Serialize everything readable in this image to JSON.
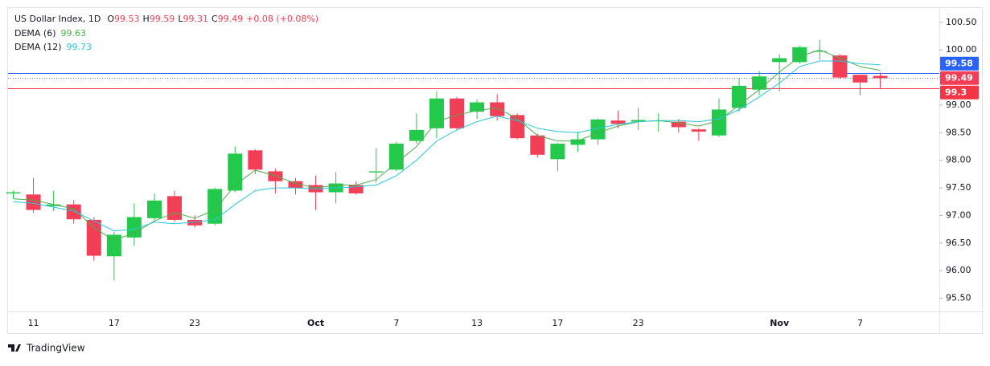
{
  "chart_data": {
    "type": "candlestick",
    "title": "US Dollar Index, 1D",
    "ohlc_letters": [
      "O",
      "H",
      "L",
      "C"
    ],
    "change_label": "+0.08 (+0.08%)",
    "footer": "TradingView",
    "up_color": "#22c94a",
    "down_color": "#f23e57",
    "categories": [
      null,
      "11",
      null,
      null,
      null,
      "17",
      null,
      null,
      null,
      "23",
      null,
      null,
      null,
      null,
      null,
      "Oct",
      null,
      null,
      null,
      "7",
      null,
      null,
      null,
      "13",
      null,
      null,
      null,
      "17",
      null,
      null,
      null,
      "23",
      null,
      null,
      null,
      null,
      null,
      null,
      "Nov",
      null,
      null,
      null,
      "7",
      null
    ],
    "open": [
      97.4,
      97.38,
      97.17,
      97.2,
      96.92,
      96.26,
      96.6,
      96.95,
      97.35,
      96.92,
      96.85,
      97.45,
      98.18,
      97.8,
      97.62,
      97.55,
      97.42,
      97.55,
      97.78,
      97.83,
      98.35,
      98.58,
      99.12,
      98.88,
      99.05,
      98.82,
      98.45,
      98.02,
      98.28,
      98.38,
      98.72,
      98.7,
      98.72,
      98.7,
      98.56,
      98.45,
      98.95,
      99.28,
      99.78,
      99.78,
      99.97,
      99.9,
      99.55,
      99.53
    ],
    "high": [
      97.45,
      97.68,
      97.45,
      97.28,
      96.97,
      96.7,
      97.22,
      97.4,
      97.45,
      97.0,
      97.5,
      98.25,
      98.2,
      97.85,
      97.68,
      97.72,
      97.78,
      97.62,
      98.22,
      98.33,
      98.85,
      99.25,
      99.15,
      99.1,
      99.2,
      98.85,
      98.48,
      98.32,
      98.52,
      98.75,
      98.9,
      98.95,
      98.85,
      98.75,
      98.58,
      99.12,
      99.48,
      99.62,
      99.92,
      100.08,
      100.18,
      99.92,
      99.55,
      99.59
    ],
    "low": [
      97.3,
      97.05,
      97.08,
      96.85,
      96.18,
      95.82,
      96.45,
      96.9,
      96.88,
      96.78,
      96.82,
      97.42,
      97.75,
      97.4,
      97.38,
      97.1,
      97.22,
      97.38,
      97.6,
      97.8,
      98.3,
      98.4,
      98.55,
      98.75,
      98.72,
      98.38,
      98.05,
      97.8,
      98.15,
      98.28,
      98.58,
      98.55,
      98.52,
      98.5,
      98.35,
      98.42,
      98.88,
      99.18,
      99.25,
      99.75,
      99.82,
      99.48,
      99.18,
      99.31
    ],
    "close": [
      97.42,
      97.1,
      97.2,
      96.93,
      96.27,
      96.65,
      96.97,
      97.27,
      96.92,
      96.82,
      97.48,
      98.12,
      97.83,
      97.62,
      97.5,
      97.42,
      97.58,
      97.4,
      97.8,
      98.3,
      98.55,
      99.12,
      98.58,
      99.05,
      98.8,
      98.4,
      98.1,
      98.3,
      98.38,
      98.74,
      98.66,
      98.73,
      98.72,
      98.6,
      98.52,
      98.92,
      99.35,
      99.52,
      99.85,
      100.05,
      99.98,
      99.5,
      99.41,
      99.49
    ],
    "series": [
      {
        "name": "DEMA (6)",
        "color": "#4caf50",
        "values": [
          97.3,
          97.28,
          97.2,
          97.12,
          96.78,
          96.55,
          96.68,
          96.9,
          97.05,
          96.95,
          97.1,
          97.55,
          97.82,
          97.72,
          97.58,
          97.5,
          97.55,
          97.55,
          97.65,
          97.95,
          98.25,
          98.7,
          98.82,
          98.9,
          98.95,
          98.75,
          98.45,
          98.35,
          98.35,
          98.5,
          98.62,
          98.7,
          98.72,
          98.68,
          98.62,
          98.72,
          99.0,
          99.28,
          99.6,
          99.88,
          100.0,
          99.85,
          99.7,
          99.63
        ]
      },
      {
        "name": "DEMA (12)",
        "color": "#26c6da",
        "values": [
          97.25,
          97.22,
          97.15,
          97.08,
          96.9,
          96.72,
          96.75,
          96.88,
          96.85,
          96.88,
          96.92,
          97.2,
          97.45,
          97.5,
          97.5,
          97.48,
          97.5,
          97.52,
          97.55,
          97.72,
          98.0,
          98.35,
          98.55,
          98.7,
          98.8,
          98.72,
          98.58,
          98.52,
          98.5,
          98.58,
          98.65,
          98.7,
          98.72,
          98.72,
          98.7,
          98.75,
          98.92,
          99.15,
          99.4,
          99.7,
          99.8,
          99.8,
          99.75,
          99.73
        ]
      }
    ],
    "price_lines": [
      {
        "value": 99.58,
        "color": "#2962ff"
      },
      {
        "value": 99.3,
        "color": "#f23645"
      }
    ],
    "ylim": [
      95.26,
      100.76
    ],
    "yticks": [
      {
        "value": 95.5,
        "label": "95.50"
      },
      {
        "value": 96,
        "label": "96.00"
      },
      {
        "value": 96.5,
        "label": "96.50"
      },
      {
        "value": 97,
        "label": "97.00"
      },
      {
        "value": 97.5,
        "label": "97.50"
      },
      {
        "value": 98,
        "label": "98.00"
      },
      {
        "value": 98.5,
        "label": "98.50"
      },
      {
        "value": 99,
        "label": "99.00"
      },
      {
        "value": 99.5,
        "label": "99.50"
      },
      {
        "value": 100,
        "label": "100.00"
      },
      {
        "value": 100.5,
        "label": "100.50"
      }
    ]
  }
}
